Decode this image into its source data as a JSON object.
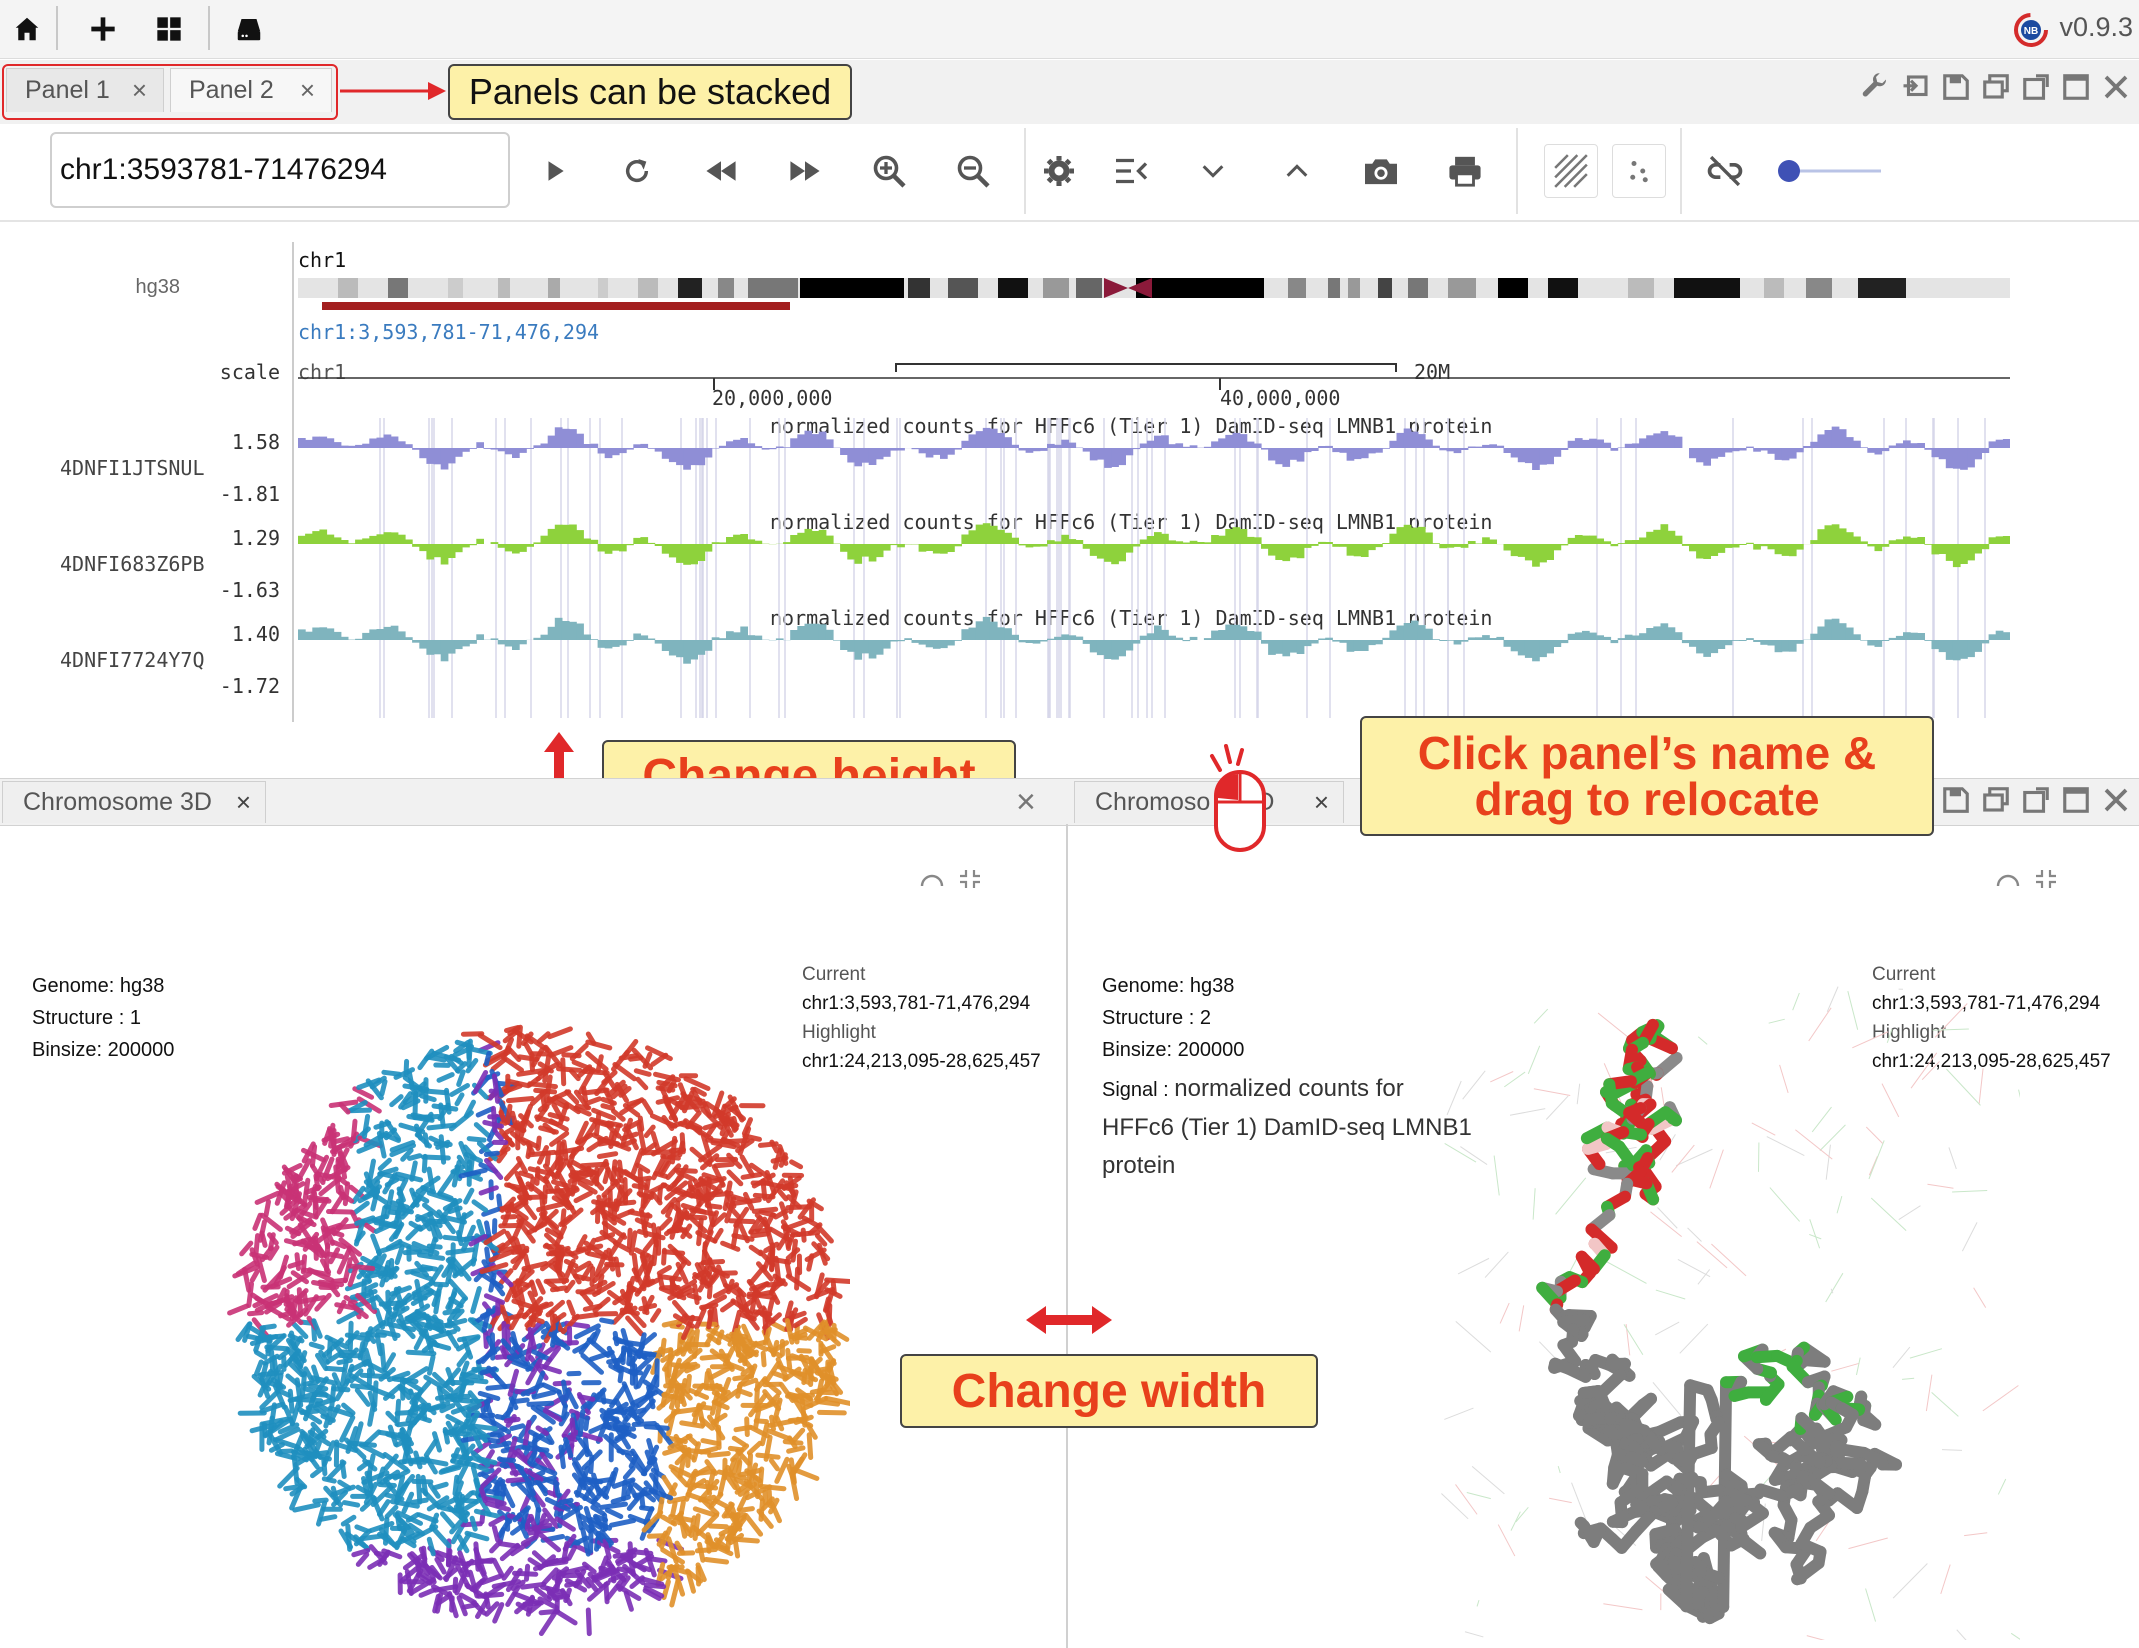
{
  "app": {
    "version": "v0.9.3",
    "logo_text": "NB",
    "icons": [
      "home-icon",
      "plus-icon",
      "grid-icon",
      "server-icon"
    ]
  },
  "panel_tabs": [
    {
      "label": "Panel 1",
      "close": "×"
    },
    {
      "label": "Panel 2",
      "close": "×"
    }
  ],
  "annotations": {
    "stacked": "Panels can be stacked",
    "height": "Change height",
    "width": "Change width",
    "relocate_line1": "Click panel’s name &",
    "relocate_line2": "drag to relocate"
  },
  "toolbar": {
    "locus_value": "chr1:3593781-71476294",
    "tools": [
      "play-icon",
      "refresh-icon",
      "rewind-icon",
      "fast-forward-icon",
      "zoom-in-icon",
      "zoom-out-icon",
      "settings-icon",
      "menu-collapse-icon",
      "chevron-down-icon",
      "chevron-up-icon",
      "camera-icon",
      "print-icon",
      "hatch-icon",
      "scatter-icon",
      "unlink-icon",
      "slider-icon"
    ]
  },
  "browser": {
    "genome": "hg38",
    "chrom": "chr1",
    "coords": "chr1:3,593,781-71,476,294",
    "scale_label": "scale",
    "scale_chrom": "chr1",
    "scale_bar": "20M",
    "ticks": [
      "20,000,000",
      "40,000,000"
    ],
    "tracks": [
      {
        "id": "4DNFI1JTSNUL",
        "max": "1.58",
        "min": "-1.81",
        "title": "normalized counts for HFFc6 (Tier 1) DamID-seq LMNB1 protein",
        "color": "#8f8ed6"
      },
      {
        "id": "4DNFI683Z6PB",
        "max": "1.29",
        "min": "-1.63",
        "title": "normalized counts for HFFc6 (Tier 1) DamID-seq LMNB1 protein",
        "color": "#8ed23c"
      },
      {
        "id": "4DNFI7724Y7Q",
        "max": "1.40",
        "min": "-1.72",
        "title": "normalized counts for HFFc6 (Tier 1) DamID-seq LMNB1 protein",
        "color": "#7fb4be"
      }
    ]
  },
  "panels3d": [
    {
      "tab": "Chromosome 3D",
      "genome": "Genome: hg38",
      "structure": "Structure : 1",
      "binsize": "Binsize: 200000",
      "current_label": "Current",
      "current": "chr1:3,593,781-71,476,294",
      "highlight_label": "Highlight",
      "highlight": "chr1:24,213,095-28,625,457"
    },
    {
      "tab": "Chromoso",
      "tab_tail": "D",
      "genome": "Genome: hg38",
      "structure": "Structure : 2",
      "binsize": "Binsize: 200000",
      "signal_label": "Signal : ",
      "signal_1": "normalized counts for",
      "signal_2": "HFFc6 (Tier 1) DamID-seq LMNB1",
      "signal_3": "protein",
      "current_label": "Current",
      "current": "chr1:3,593,781-71,476,294",
      "highlight_label": "Highlight",
      "highlight": "chr1:24,213,095-28,625,457"
    }
  ]
}
